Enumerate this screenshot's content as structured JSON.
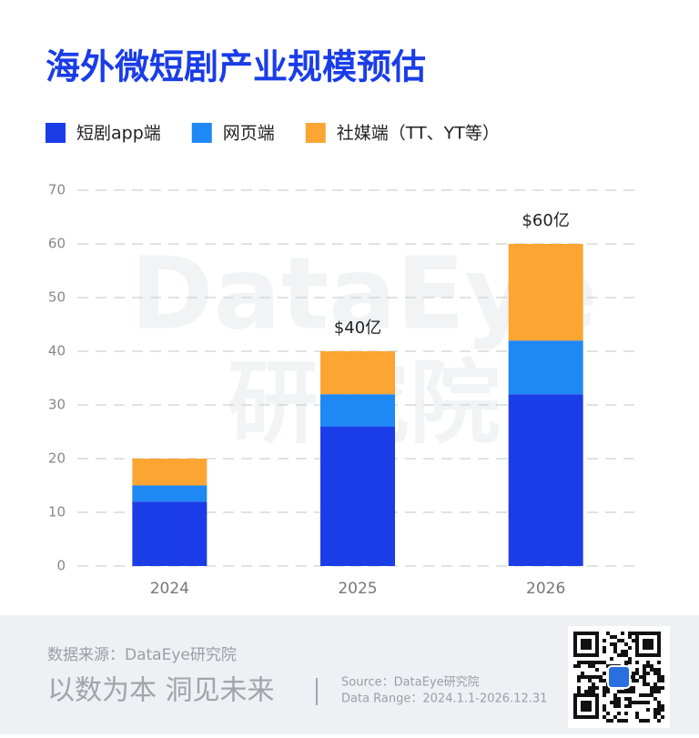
{
  "chart_data": {
    "type": "stacked_bar",
    "title": "海外微短剧产业规模预估",
    "categories": [
      "2024",
      "2025",
      "2026"
    ],
    "series": [
      {
        "name": "短剧app端",
        "color": "#1a3de8",
        "values": [
          12,
          26,
          32
        ]
      },
      {
        "name": "网页端",
        "color": "#1e88f5",
        "values": [
          3,
          6,
          10
        ]
      },
      {
        "name": "社媒端（TT、YT等）",
        "color": "#fba533",
        "values": [
          5,
          8,
          18
        ]
      }
    ],
    "annotations": [
      {
        "category": "2025",
        "text": "$40亿"
      },
      {
        "category": "2026",
        "text": "$60亿"
      }
    ],
    "ylim": [
      0,
      70
    ],
    "yticks": [
      0,
      10,
      20,
      30,
      40,
      50,
      60,
      70
    ],
    "grid": true,
    "watermark": [
      "DataEye",
      "研究院"
    ]
  },
  "footer": {
    "source_cn": "数据来源：DataEye研究院",
    "slogan": "以数为本 洞见未来",
    "source_en": "Source：DataEye研究院",
    "range": "Data Range：2024.1.1-2026.12.31"
  }
}
